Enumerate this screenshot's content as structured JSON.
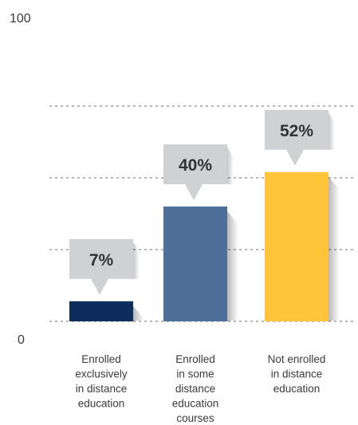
{
  "chart_data": {
    "type": "bar",
    "title": "",
    "xlabel": "",
    "ylabel": "",
    "ylim": [
      0,
      100
    ],
    "y_tick_labels": [
      "0",
      "100"
    ],
    "grid": true,
    "categories": [
      [
        "Enrolled",
        "exclusively",
        "in distance",
        "education"
      ],
      [
        "Enrolled",
        "in some",
        "distance",
        "education",
        "courses"
      ],
      [
        "Not enrolled",
        "in distance",
        "education"
      ]
    ],
    "values": [
      7,
      40,
      52
    ],
    "value_labels": [
      "7%",
      "40%",
      "52%"
    ],
    "colors": [
      "#0d2d5c",
      "#4e6f99",
      "#ffc43a"
    ],
    "callout_color": "#d0d1d3",
    "grid_color": "#8a8a8a"
  }
}
